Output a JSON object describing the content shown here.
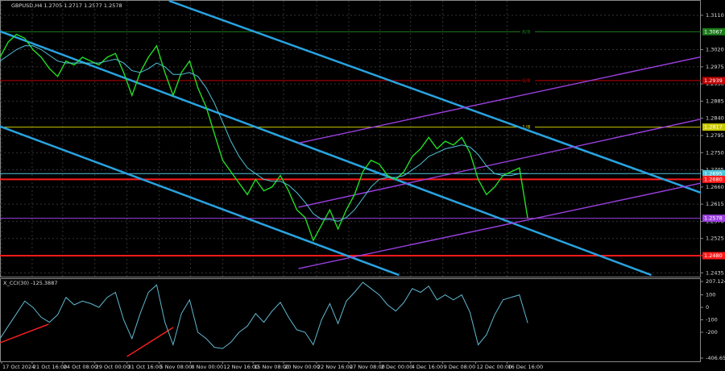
{
  "chart_data": [
    {
      "type": "line",
      "title": "GBPUSD,H4 1.2705 1.2717 1.2577 1.2578",
      "xlim": [
        0,
        85
      ],
      "ylim": [
        1.2425,
        1.3148
      ],
      "xticks": [
        {
          "value": 0.2,
          "label": "17 Oct 2024"
        },
        {
          "value": 3.9,
          "label": "21 Oct 16:00"
        },
        {
          "value": 7.6,
          "label": "24 Oct 08:00"
        },
        {
          "value": 11.5,
          "label": "29 Oct 00:00"
        },
        {
          "value": 15.4,
          "label": "31 Oct 16:00"
        },
        {
          "value": 19.3,
          "label": "5 Nov 08:00"
        },
        {
          "value": 23.1,
          "label": "8 Nov 00:00"
        },
        {
          "value": 27,
          "label": "12 Nov 16:00"
        },
        {
          "value": 30.7,
          "label": "15 Nov 08:00"
        },
        {
          "value": 34.4,
          "label": "20 Nov 00:00"
        },
        {
          "value": 38.4,
          "label": "22 Nov 16:00"
        },
        {
          "value": 42.3,
          "label": "27 Nov 08:00"
        },
        {
          "value": 46.1,
          "label": "2 Dec 00:00"
        },
        {
          "value": 49.8,
          "label": "4 Dec 16:00"
        },
        {
          "value": 53.7,
          "label": "9 Dec 08:00"
        },
        {
          "value": 57.7,
          "label": "12 Dec 00:00"
        },
        {
          "value": 61.5,
          "label": "16 Dec 16:00"
        }
      ],
      "yticks": [
        {
          "value": 1.311,
          "label": "1.3110"
        },
        {
          "value": 1.302,
          "label": "1.3020"
        },
        {
          "value": 1.2975,
          "label": "1.2975"
        },
        {
          "value": 1.293,
          "label": "1.2930"
        },
        {
          "value": 1.2885,
          "label": "1.2885"
        },
        {
          "value": 1.284,
          "label": "1.2840"
        },
        {
          "value": 1.2795,
          "label": "1.2795"
        },
        {
          "value": 1.275,
          "label": "1.2750"
        },
        {
          "value": 1.2705,
          "label": "1.2705"
        },
        {
          "value": 1.266,
          "label": "1.2660"
        },
        {
          "value": 1.2615,
          "label": "1.2615"
        },
        {
          "value": 1.257,
          "label": "1.2570"
        },
        {
          "value": 1.2525,
          "label": "1.2525"
        },
        {
          "value": 1.248,
          "label": "1.2480"
        },
        {
          "value": 1.2435,
          "label": "1.2435"
        }
      ],
      "grid": true,
      "series": [
        {
          "color": "#22dd22",
          "values": [
            1.3,
            1.304,
            1.306,
            1.305,
            1.302,
            1.3,
            1.297,
            1.295,
            1.299,
            1.298,
            1.3,
            1.299,
            1.298,
            1.3,
            1.301,
            1.296,
            1.29,
            1.296,
            1.3,
            1.303,
            1.296,
            1.29,
            1.296,
            1.299,
            1.292,
            1.287,
            1.28,
            1.273,
            1.27,
            1.267,
            1.264,
            1.268,
            1.265,
            1.266,
            1.269,
            1.265,
            1.26,
            1.258,
            1.252,
            1.256,
            1.26,
            1.255,
            1.26,
            1.264,
            1.27,
            1.273,
            1.272,
            1.269,
            1.268,
            1.27,
            1.274,
            1.276,
            1.279,
            1.276,
            1.278,
            1.277,
            1.279,
            1.275,
            1.268,
            1.264,
            1.266,
            1.269,
            1.27,
            1.271,
            1.2578
          ]
        },
        {
          "color": "#4fc3d9",
          "values": [
            1.299,
            1.3005,
            1.302,
            1.303,
            1.303,
            1.302,
            1.3005,
            1.299,
            1.2985,
            1.2985,
            1.2985,
            1.2985,
            1.2985,
            1.299,
            1.2995,
            1.2985,
            1.2965,
            1.296,
            1.297,
            1.2985,
            1.2975,
            1.2955,
            1.2955,
            1.296,
            1.295,
            1.292,
            1.288,
            1.283,
            1.278,
            1.274,
            1.271,
            1.2695,
            1.268,
            1.2675,
            1.2675,
            1.2665,
            1.2645,
            1.262,
            1.259,
            1.2575,
            1.2575,
            1.257,
            1.258,
            1.26,
            1.263,
            1.266,
            1.268,
            1.2685,
            1.2685,
            1.269,
            1.2705,
            1.272,
            1.274,
            1.275,
            1.276,
            1.2765,
            1.277,
            1.2765,
            1.2745,
            1.2715,
            1.2695,
            1.269,
            1.269,
            1.2695,
            1.2695
          ]
        }
      ],
      "trendlines": [
        {
          "color": "#29a3e0",
          "x": [
            20.5,
            85
          ],
          "y": [
            1.3148,
            1.2645
          ]
        },
        {
          "color": "#29a3e0",
          "x": [
            0,
            79
          ],
          "y": [
            1.3068,
            1.2429
          ]
        },
        {
          "color": "#29a3e0",
          "x": [
            0,
            48.4
          ],
          "y": [
            1.2819,
            1.2429
          ]
        },
        {
          "color": "#9b40e0",
          "x": [
            36.2,
            85
          ],
          "y": [
            1.2775,
            1.3001
          ]
        },
        {
          "color": "#9b40e0",
          "x": [
            36.2,
            85
          ],
          "y": [
            1.2607,
            1.2838
          ]
        },
        {
          "color": "#9b40e0",
          "x": [
            36.2,
            85
          ],
          "y": [
            1.2446,
            1.267
          ]
        }
      ],
      "levels": [
        {
          "value": 1.3067,
          "label": "1.3067",
          "name": "8/8",
          "color": "#1a7a1a"
        },
        {
          "value": 1.2939,
          "label": "1.2939",
          "name": "6/8",
          "color": "#c00000"
        },
        {
          "value": 1.2817,
          "label": "1.2817",
          "name": "1/8",
          "color": "#c8c800"
        },
        {
          "value": 1.2695,
          "label": "1.2695",
          "color": "#4fc3d9"
        },
        {
          "value": 1.268,
          "label": "1.2680",
          "color": "#ff1a1a"
        },
        {
          "value": 1.2578,
          "label": "1.2578",
          "color": "#9b40e0"
        },
        {
          "value": 1.248,
          "label": "1.2480",
          "color": "#ff1a1a"
        }
      ]
    },
    {
      "type": "line",
      "title": "X_CCI(30) -125.3887",
      "ylim": [
        -406.6577,
        207.1248
      ],
      "yticks": [
        {
          "value": 207.1248,
          "label": "207.1248"
        },
        100,
        0,
        -100,
        -200,
        {
          "value": -406.6577,
          "label": "-406.6577"
        }
      ],
      "series": [
        {
          "color": "#5fb8d0",
          "values": [
            -250,
            -150,
            -50,
            50,
            0,
            -80,
            -120,
            -60,
            80,
            20,
            50,
            30,
            0,
            80,
            120,
            -100,
            -250,
            -50,
            120,
            180,
            -120,
            -300,
            -50,
            60,
            -200,
            -250,
            -320,
            -330,
            -280,
            -200,
            -150,
            -50,
            -120,
            -30,
            40,
            -80,
            -180,
            -200,
            -300,
            -100,
            30,
            -130,
            50,
            120,
            200,
            150,
            100,
            20,
            -30,
            40,
            150,
            120,
            170,
            60,
            100,
            60,
            100,
            -40,
            -300,
            -220,
            -60,
            60,
            80,
            100,
            -125.3887
          ]
        }
      ],
      "trendlines": [
        {
          "color": "#ff2020",
          "x": [
            0,
            5.9
          ],
          "y": [
            -284,
            -135
          ]
        },
        {
          "color": "#ff2020",
          "x": [
            15.4,
            21
          ],
          "y": [
            -394,
            -161
          ]
        }
      ]
    }
  ]
}
